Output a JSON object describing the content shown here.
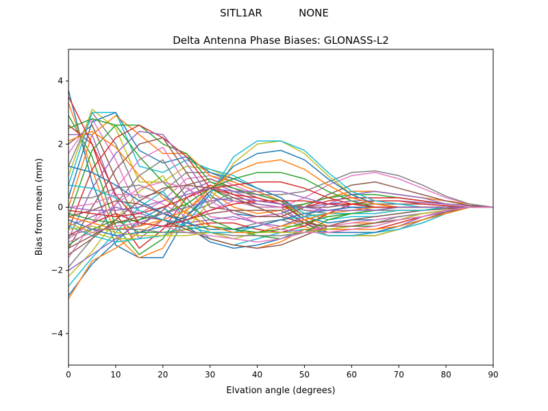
{
  "header": {
    "station": "SITL1AR",
    "radome": "NONE"
  },
  "chart_data": {
    "type": "line",
    "title": "Delta Antenna Phase Biases: GLONASS-L2",
    "xlabel": "Elvation angle (degrees)",
    "ylabel": "Bias from mean (mm)",
    "xlim": [
      0,
      90
    ],
    "ylim": [
      -5,
      5
    ],
    "xticks": [
      0,
      10,
      20,
      30,
      40,
      50,
      60,
      70,
      80,
      90
    ],
    "yticks": [
      -4,
      -2,
      0,
      2,
      4
    ],
    "grid": false,
    "legend": "none",
    "x": [
      0,
      5,
      10,
      15,
      20,
      25,
      30,
      35,
      40,
      45,
      50,
      55,
      60,
      65,
      70,
      75,
      80,
      85,
      90
    ],
    "colors": [
      "#1f77b4",
      "#ff7f0e",
      "#2ca02c",
      "#d62728",
      "#9467bd",
      "#8c564b",
      "#e377c2",
      "#7f7f7f",
      "#bcbd22",
      "#17becf"
    ],
    "series": [
      {
        "values": [
          3.7,
          0.8,
          -1.2,
          -1.6,
          -1.6,
          -0.3,
          0.4,
          -0.2,
          -0.3,
          -0.2,
          0.1,
          0.3,
          0.5,
          0.5,
          0.4,
          0.3,
          0.2,
          0.1,
          0
        ]
      },
      {
        "values": [
          3.3,
          1.2,
          -0.9,
          -1.6,
          -1.3,
          -0.1,
          0.5,
          0.0,
          -0.2,
          -0.1,
          0.1,
          0.3,
          0.5,
          0.5,
          0.4,
          0.3,
          0.2,
          0.1,
          0
        ]
      },
      {
        "values": [
          2.9,
          1.6,
          -0.6,
          -1.5,
          -1.0,
          0.1,
          0.6,
          0.2,
          0.0,
          0.0,
          0.1,
          0.3,
          0.4,
          0.4,
          0.3,
          0.2,
          0.1,
          0.05,
          0
        ]
      },
      {
        "values": [
          2.6,
          2.0,
          -0.2,
          -1.3,
          -0.7,
          0.3,
          0.7,
          0.4,
          0.1,
          0.0,
          0.0,
          0.2,
          0.3,
          0.3,
          0.3,
          0.2,
          0.1,
          0.05,
          0
        ]
      },
      {
        "values": [
          2.3,
          2.3,
          0.3,
          -1.0,
          -0.4,
          0.5,
          0.8,
          0.5,
          0.2,
          0.1,
          0.0,
          0.1,
          0.2,
          0.2,
          0.2,
          0.15,
          0.1,
          0.05,
          0
        ]
      },
      {
        "values": [
          2.0,
          2.6,
          0.9,
          -0.6,
          -0.1,
          0.7,
          0.9,
          0.6,
          0.3,
          0.1,
          0.0,
          0.0,
          0.1,
          0.1,
          0.1,
          0.1,
          0.05,
          0.0,
          0
        ]
      },
      {
        "values": [
          1.7,
          2.8,
          1.5,
          -0.2,
          0.2,
          0.9,
          1.0,
          0.7,
          0.4,
          0.2,
          -0.1,
          -0.1,
          0.0,
          0.0,
          0.0,
          0.0,
          0.0,
          0.0,
          0
        ]
      },
      {
        "values": [
          1.3,
          3.0,
          2.0,
          0.3,
          0.5,
          1.1,
          1.1,
          0.8,
          0.5,
          0.2,
          -0.1,
          -0.2,
          -0.1,
          -0.1,
          -0.1,
          -0.1,
          0.0,
          0.0,
          0
        ]
      },
      {
        "values": [
          1.0,
          3.1,
          2.5,
          0.8,
          0.8,
          1.3,
          1.2,
          0.9,
          0.6,
          0.3,
          -0.2,
          -0.3,
          -0.2,
          -0.2,
          -0.1,
          -0.1,
          -0.05,
          0.0,
          0
        ]
      },
      {
        "values": [
          0.7,
          3.0,
          3.0,
          1.3,
          1.1,
          1.5,
          1.2,
          1.0,
          0.6,
          0.3,
          -0.2,
          -0.4,
          -0.3,
          -0.3,
          -0.2,
          -0.1,
          -0.05,
          0.0,
          0
        ]
      },
      {
        "values": [
          0.3,
          2.7,
          3.0,
          1.8,
          1.4,
          1.6,
          1.1,
          0.9,
          0.6,
          0.3,
          -0.3,
          -0.5,
          -0.4,
          -0.4,
          -0.3,
          -0.2,
          -0.1,
          0.0,
          0
        ]
      },
      {
        "values": [
          0.0,
          2.3,
          2.9,
          2.3,
          1.7,
          1.7,
          1.0,
          0.8,
          0.5,
          0.2,
          -0.3,
          -0.6,
          -0.5,
          -0.5,
          -0.4,
          -0.2,
          -0.1,
          0.0,
          0
        ]
      },
      {
        "values": [
          -0.3,
          1.8,
          2.6,
          2.6,
          2.0,
          1.7,
          0.8,
          0.6,
          0.4,
          0.2,
          -0.4,
          -0.7,
          -0.6,
          -0.6,
          -0.4,
          -0.3,
          -0.1,
          0.0,
          0
        ]
      },
      {
        "values": [
          -0.7,
          1.2,
          2.2,
          2.6,
          2.2,
          1.6,
          0.6,
          0.4,
          0.3,
          0.1,
          -0.4,
          -0.8,
          -0.7,
          -0.7,
          -0.5,
          -0.3,
          -0.1,
          0.0,
          0
        ]
      },
      {
        "values": [
          -1.0,
          0.6,
          1.7,
          2.4,
          2.3,
          1.4,
          0.3,
          0.2,
          0.1,
          0.0,
          -0.5,
          -0.8,
          -0.8,
          -0.8,
          -0.6,
          -0.3,
          -0.15,
          0.0,
          0
        ]
      },
      {
        "values": [
          -1.3,
          0.0,
          1.2,
          2.0,
          2.2,
          1.1,
          0.0,
          -0.1,
          -0.1,
          -0.1,
          -0.5,
          -0.9,
          -0.9,
          -0.8,
          -0.6,
          -0.4,
          -0.15,
          0.0,
          0
        ]
      },
      {
        "values": [
          -1.6,
          -0.5,
          0.6,
          1.5,
          1.9,
          0.7,
          -0.3,
          -0.4,
          -0.3,
          -0.2,
          -0.6,
          -0.9,
          -0.9,
          -0.9,
          -0.7,
          -0.4,
          -0.2,
          0.0,
          0
        ]
      },
      {
        "values": [
          -1.9,
          -1.0,
          0.1,
          1.0,
          1.5,
          0.3,
          -0.6,
          -0.7,
          -0.5,
          -0.4,
          -0.6,
          -0.9,
          -0.9,
          -0.9,
          -0.7,
          -0.4,
          -0.2,
          0.0,
          0
        ]
      },
      {
        "values": [
          -2.2,
          -1.4,
          -0.4,
          0.5,
          1.0,
          -0.1,
          -0.8,
          -1.0,
          -0.8,
          -0.6,
          -0.6,
          -0.9,
          -0.9,
          -0.9,
          -0.7,
          -0.5,
          -0.2,
          0.0,
          0
        ]
      },
      {
        "values": [
          -2.5,
          -1.6,
          -0.8,
          0.0,
          0.5,
          -0.4,
          -1.0,
          -1.2,
          -1.0,
          -0.8,
          -0.7,
          -0.9,
          -0.9,
          -0.8,
          -0.7,
          -0.5,
          -0.2,
          0.0,
          0
        ]
      },
      {
        "values": [
          -2.8,
          -1.8,
          -1.1,
          -0.4,
          0.0,
          -0.6,
          -1.1,
          -1.3,
          -1.2,
          -1.0,
          -0.7,
          -0.8,
          -0.8,
          -0.8,
          -0.6,
          -0.4,
          -0.2,
          0.0,
          0
        ]
      },
      {
        "values": [
          -2.9,
          -1.7,
          -1.3,
          -0.8,
          -0.4,
          -0.7,
          -1.0,
          -1.2,
          -1.3,
          -1.1,
          -0.7,
          -0.7,
          -0.7,
          -0.7,
          -0.6,
          -0.4,
          -0.2,
          0.0,
          0
        ]
      },
      {
        "values": [
          -1.2,
          -0.7,
          -0.4,
          -0.8,
          -0.8,
          -0.7,
          -0.6,
          -0.7,
          -0.9,
          -1.0,
          -0.8,
          -0.4,
          -0.2,
          -0.1,
          0.0,
          0.0,
          0.0,
          0.0,
          0
        ]
      },
      {
        "values": [
          -0.9,
          -0.5,
          -0.2,
          -0.5,
          -0.6,
          -0.6,
          -0.5,
          -0.5,
          -0.7,
          -0.8,
          -0.6,
          -0.2,
          0.1,
          0.2,
          0.2,
          0.1,
          0.05,
          0.0,
          0
        ]
      },
      {
        "values": [
          -0.6,
          -0.3,
          0.0,
          -0.2,
          -0.4,
          -0.5,
          -0.4,
          -0.3,
          -0.5,
          -0.6,
          -0.3,
          0.1,
          0.4,
          0.5,
          0.4,
          0.3,
          0.1,
          0.05,
          0
        ]
      },
      {
        "values": [
          -0.3,
          -0.1,
          0.2,
          0.1,
          -0.2,
          -0.4,
          -0.2,
          -0.1,
          -0.3,
          -0.3,
          0.0,
          0.4,
          0.7,
          0.8,
          0.6,
          0.4,
          0.2,
          0.05,
          0
        ]
      },
      {
        "values": [
          0.0,
          0.1,
          0.4,
          0.4,
          0.1,
          -0.3,
          -0.1,
          0.2,
          0.0,
          0.0,
          0.3,
          0.7,
          1.0,
          1.1,
          0.9,
          0.6,
          0.3,
          0.1,
          0
        ]
      },
      {
        "values": [
          0.3,
          0.3,
          0.6,
          0.7,
          0.4,
          -0.2,
          0.1,
          0.5,
          0.4,
          0.4,
          0.5,
          0.8,
          1.1,
          1.15,
          1.0,
          0.7,
          0.35,
          0.1,
          0
        ]
      },
      {
        "values": [
          -0.5,
          -0.8,
          -1.0,
          -1.0,
          -0.9,
          -0.7,
          0.2,
          1.4,
          2.0,
          2.1,
          1.7,
          1.0,
          0.4,
          0.1,
          0.0,
          0.0,
          0.0,
          0.0,
          0
        ]
      },
      {
        "values": [
          -0.6,
          -0.9,
          -1.1,
          -1.0,
          -0.9,
          -0.5,
          0.4,
          1.6,
          2.1,
          2.1,
          1.8,
          1.1,
          0.5,
          0.2,
          0.1,
          0.0,
          0.0,
          0.0,
          0
        ]
      },
      {
        "values": [
          -0.4,
          -0.7,
          -0.9,
          -0.8,
          -0.6,
          -0.3,
          0.5,
          1.3,
          1.7,
          1.8,
          1.5,
          0.9,
          0.4,
          0.1,
          0.0,
          0.0,
          0.0,
          0.0,
          0
        ]
      },
      {
        "values": [
          -0.3,
          -0.5,
          -0.7,
          -0.6,
          -0.4,
          -0.1,
          0.6,
          1.1,
          1.4,
          1.5,
          1.2,
          0.7,
          0.3,
          0.1,
          0.0,
          0.0,
          0.0,
          0.0,
          0
        ]
      },
      {
        "values": [
          -0.2,
          -0.4,
          -0.5,
          -0.4,
          -0.2,
          0.1,
          0.6,
          0.9,
          1.1,
          1.1,
          0.9,
          0.5,
          0.2,
          0.0,
          0.0,
          0.0,
          0.0,
          0.0,
          0
        ]
      },
      {
        "values": [
          -0.1,
          -0.2,
          -0.3,
          -0.2,
          0.0,
          0.3,
          0.6,
          0.7,
          0.8,
          0.8,
          0.6,
          0.3,
          0.1,
          0.0,
          0.0,
          0.0,
          0.0,
          0.0,
          0
        ]
      },
      {
        "values": [
          0.0,
          -0.1,
          -0.1,
          0.0,
          0.2,
          0.4,
          0.6,
          0.5,
          0.5,
          0.5,
          0.3,
          0.1,
          0.0,
          -0.1,
          0.0,
          0.0,
          0.0,
          0.0,
          0
        ]
      },
      {
        "values": [
          -1.3,
          -0.9,
          -0.5,
          -0.3,
          -0.4,
          -0.7,
          -1.0,
          -1.2,
          -1.3,
          -1.2,
          -0.9,
          -0.6,
          -0.4,
          -0.3,
          -0.2,
          -0.1,
          -0.05,
          0.0,
          0
        ]
      },
      {
        "values": [
          -1.1,
          -0.8,
          -0.6,
          -0.5,
          -0.6,
          -0.8,
          -0.9,
          -1.0,
          -1.1,
          -1.0,
          -0.8,
          -0.6,
          -0.5,
          -0.4,
          -0.3,
          -0.2,
          -0.1,
          0.0,
          0
        ]
      },
      {
        "values": [
          -0.9,
          -0.7,
          -0.7,
          -0.7,
          -0.8,
          -0.8,
          -0.8,
          -0.9,
          -0.9,
          -0.9,
          -0.8,
          -0.7,
          -0.6,
          -0.5,
          -0.3,
          -0.2,
          -0.1,
          0.0,
          0
        ]
      },
      {
        "values": [
          -0.7,
          -0.6,
          -0.8,
          -0.9,
          -0.9,
          -0.9,
          -0.8,
          -0.8,
          -0.8,
          -0.8,
          -0.8,
          -0.7,
          -0.6,
          -0.5,
          -0.4,
          -0.2,
          -0.1,
          0.0,
          0
        ]
      },
      {
        "values": [
          0.7,
          0.6,
          0.3,
          -0.1,
          -0.4,
          -0.6,
          -0.8,
          -0.8,
          -0.6,
          -0.4,
          -0.3,
          -0.2,
          -0.2,
          -0.2,
          -0.1,
          -0.1,
          0.0,
          0.0,
          0
        ]
      },
      {
        "values": [
          1.3,
          1.1,
          0.7,
          0.2,
          -0.2,
          -0.5,
          -0.7,
          -0.7,
          -0.6,
          -0.4,
          -0.2,
          -0.1,
          0.0,
          0.0,
          0.0,
          0.0,
          0.0,
          0.0,
          0
        ]
      },
      {
        "values": [
          2.1,
          2.4,
          1.9,
          1.0,
          0.3,
          -0.2,
          -0.6,
          -0.8,
          -0.8,
          -0.6,
          -0.4,
          -0.2,
          -0.1,
          0.0,
          0.0,
          0.0,
          0.0,
          0.0,
          0
        ]
      },
      {
        "values": [
          2.5,
          2.8,
          2.6,
          1.6,
          0.8,
          0.1,
          -0.4,
          -0.7,
          -0.8,
          -0.7,
          -0.5,
          -0.3,
          -0.2,
          -0.1,
          0.0,
          0.0,
          0.0,
          0.0,
          0
        ]
      },
      {
        "values": [
          3.5,
          2.0,
          0.4,
          -0.5,
          -0.6,
          -0.4,
          -0.1,
          0.1,
          0.2,
          0.2,
          0.2,
          0.1,
          0.1,
          0.0,
          0.0,
          0.0,
          0.0,
          0.0,
          0
        ]
      },
      {
        "values": [
          -2.0,
          -1.5,
          -1.0,
          -0.5,
          -0.2,
          0.0,
          0.2,
          0.3,
          0.2,
          0.1,
          0.0,
          -0.1,
          -0.1,
          -0.1,
          0.0,
          0.0,
          0.0,
          0.0,
          0
        ]
      },
      {
        "values": [
          -1.5,
          -1.0,
          -0.4,
          0.2,
          0.6,
          0.7,
          0.6,
          0.3,
          0.0,
          -0.3,
          -0.5,
          -0.6,
          -0.6,
          -0.5,
          -0.4,
          -0.3,
          -0.1,
          0.0,
          0
        ]
      },
      {
        "values": [
          -1.0,
          -0.5,
          0.1,
          0.6,
          0.8,
          0.6,
          0.2,
          -0.2,
          -0.5,
          -0.7,
          -0.8,
          -0.8,
          -0.7,
          -0.6,
          -0.4,
          -0.3,
          -0.1,
          0.0,
          0
        ]
      }
    ]
  }
}
